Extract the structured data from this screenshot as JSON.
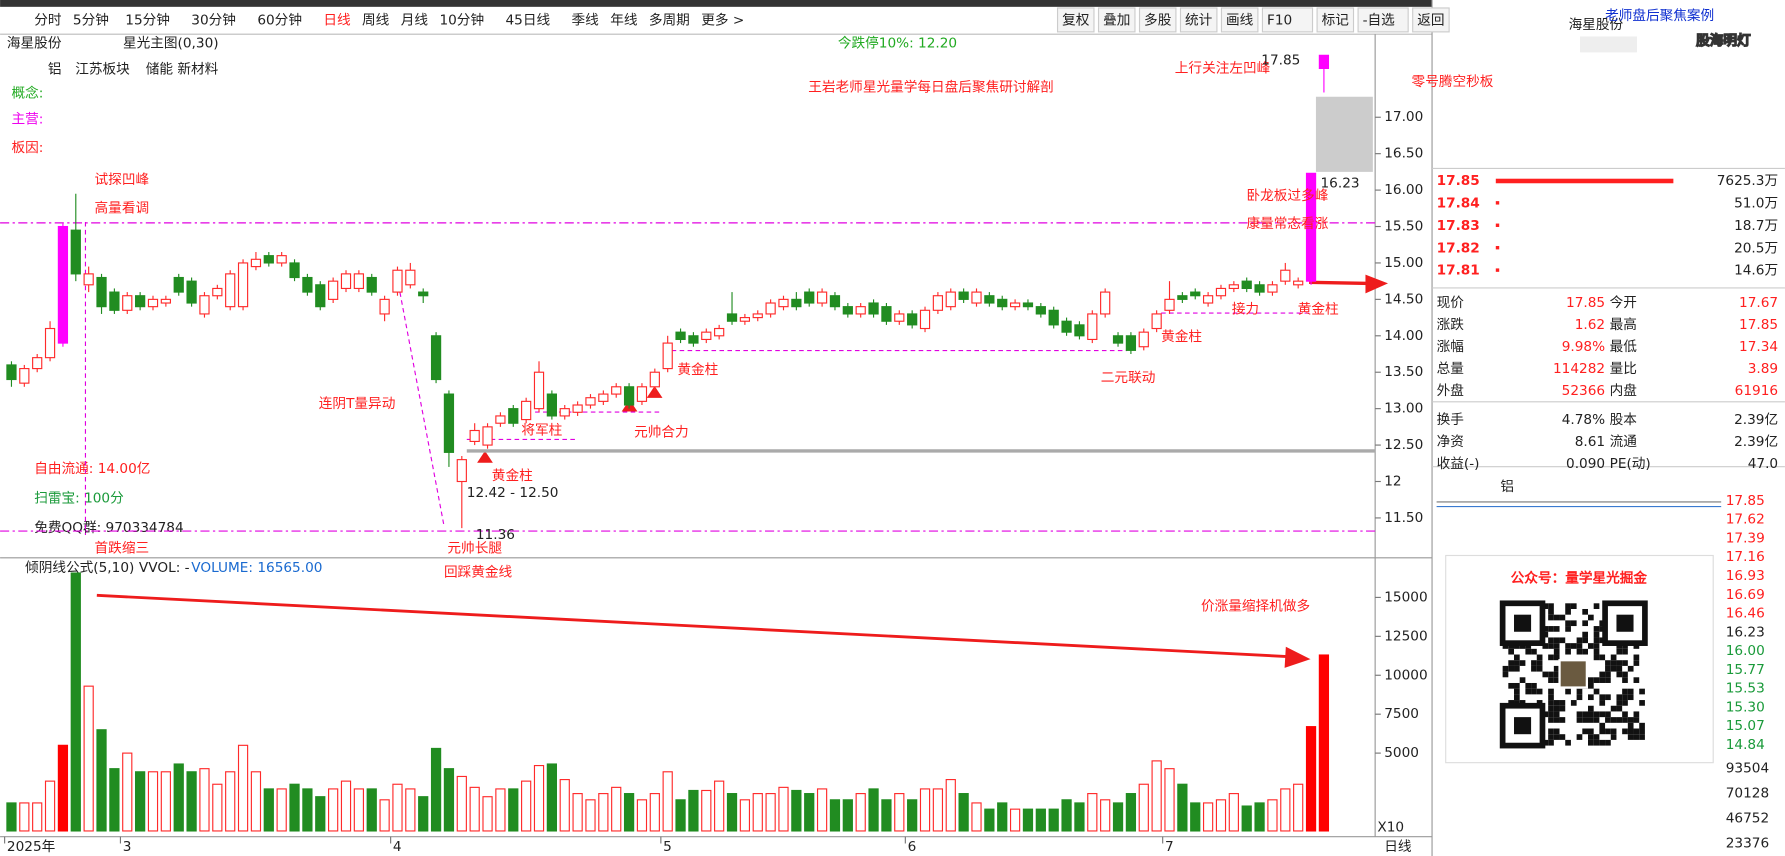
{
  "header": {
    "tabs": [
      "分时",
      "5分钟",
      "15分钟",
      "30分钟",
      "60分钟",
      "日线",
      "周线",
      "月线",
      "10分钟",
      "45日线",
      "季线",
      "年线",
      "多周期",
      "更多 >"
    ],
    "tools": [
      "复权",
      "叠加",
      "多股",
      "统计",
      "画线",
      "F10",
      "标记",
      "-自选",
      "返回"
    ]
  },
  "chart_data": {
    "type": "candlestick",
    "title": "海星股份",
    "indicator": "星光主图(0,30)",
    "limit_down": "今跌停10%: 12.20",
    "tags": [
      "铝",
      "江苏板块",
      "储能 新材料"
    ],
    "labels": [
      "概念:",
      "主营:",
      "板因:"
    ],
    "info": [
      "自由流通: 14.00亿",
      "扫雷宝: 100分",
      "免费QQ群: 970334784"
    ],
    "categories": [
      "2025年",
      null,
      null,
      null,
      null,
      null,
      null,
      null,
      null,
      "3",
      null,
      null,
      null,
      null,
      null,
      null,
      null,
      null,
      null,
      null,
      null,
      null,
      null,
      null,
      null,
      null,
      null,
      null,
      null,
      null,
      "4",
      null,
      null,
      null,
      null,
      null,
      null,
      null,
      null,
      null,
      null,
      null,
      null,
      null,
      null,
      null,
      null,
      null,
      null,
      null,
      null,
      "5",
      null,
      null,
      null,
      null,
      null,
      null,
      null,
      null,
      null,
      null,
      null,
      null,
      null,
      null,
      null,
      null,
      null,
      null,
      "6",
      null,
      null,
      null,
      null,
      null,
      null,
      null,
      null,
      null,
      null,
      null,
      null,
      null,
      null,
      null,
      null,
      null,
      null,
      null,
      "7",
      null,
      null,
      null,
      null,
      null,
      null,
      null,
      null,
      null,
      null,
      null,
      null
    ],
    "open": [
      13.6,
      13.35,
      13.55,
      13.7,
      13.9,
      15.45,
      14.7,
      14.8,
      14.6,
      14.35,
      14.55,
      14.4,
      14.45,
      14.8,
      14.75,
      14.3,
      14.55,
      14.4,
      14.4,
      14.95,
      15.1,
      15.0,
      15.0,
      14.8,
      14.7,
      14.5,
      14.65,
      14.65,
      14.8,
      14.3,
      14.6,
      14.7,
      14.6,
      14.0,
      13.2,
      12.0,
      12.55,
      12.5,
      12.8,
      13.0,
      12.85,
      13.0,
      13.2,
      12.9,
      12.95,
      13.05,
      13.1,
      13.2,
      13.3,
      13.1,
      13.3,
      13.55,
      14.05,
      14.0,
      13.95,
      14.0,
      14.3,
      14.2,
      14.25,
      14.3,
      14.4,
      14.5,
      14.6,
      14.45,
      14.55,
      14.4,
      14.3,
      14.45,
      14.4,
      14.2,
      14.3,
      14.1,
      14.35,
      14.4,
      14.6,
      14.45,
      14.55,
      14.5,
      14.4,
      14.45,
      14.4,
      14.35,
      14.2,
      14.15,
      13.95,
      14.3,
      14.0,
      14.0,
      13.85,
      14.1,
      14.35,
      14.55,
      14.6,
      14.45,
      14.55,
      14.65,
      14.75,
      14.7,
      14.6,
      14.75,
      14.7,
      14.75,
      17.67
    ],
    "close": [
      13.4,
      13.55,
      13.7,
      14.1,
      15.5,
      14.85,
      14.85,
      14.4,
      14.35,
      14.55,
      14.4,
      14.5,
      14.5,
      14.6,
      14.45,
      14.55,
      14.65,
      14.85,
      15.0,
      15.05,
      15.0,
      15.1,
      14.8,
      14.6,
      14.4,
      14.75,
      14.85,
      14.85,
      14.6,
      14.5,
      14.9,
      14.9,
      14.55,
      13.4,
      12.4,
      12.3,
      12.7,
      12.75,
      12.9,
      12.8,
      13.1,
      13.5,
      12.9,
      13.0,
      13.05,
      13.15,
      13.2,
      13.3,
      13.05,
      13.3,
      13.5,
      13.9,
      13.95,
      13.9,
      14.05,
      14.1,
      14.2,
      14.25,
      14.3,
      14.45,
      14.5,
      14.4,
      14.45,
      14.6,
      14.4,
      14.3,
      14.4,
      14.3,
      14.2,
      14.3,
      14.15,
      14.35,
      14.55,
      14.6,
      14.5,
      14.6,
      14.45,
      14.4,
      14.45,
      14.4,
      14.3,
      14.15,
      14.05,
      14.0,
      14.3,
      14.6,
      13.9,
      13.8,
      14.05,
      14.3,
      14.5,
      14.5,
      14.55,
      14.55,
      14.65,
      14.7,
      14.65,
      14.6,
      14.7,
      14.9,
      14.75,
      16.23,
      17.85
    ],
    "high": [
      13.65,
      13.6,
      13.75,
      14.2,
      15.55,
      15.95,
      14.95,
      14.85,
      14.65,
      14.6,
      14.6,
      14.55,
      14.55,
      14.85,
      14.8,
      14.6,
      14.7,
      14.9,
      15.05,
      15.15,
      15.15,
      15.15,
      15.05,
      14.85,
      14.75,
      14.8,
      14.9,
      14.9,
      14.85,
      14.55,
      14.95,
      15.0,
      14.65,
      14.05,
      13.25,
      12.35,
      12.8,
      12.8,
      12.95,
      13.05,
      13.15,
      13.65,
      13.25,
      13.05,
      13.1,
      13.2,
      13.25,
      13.35,
      13.35,
      13.35,
      13.55,
      14.0,
      14.1,
      14.05,
      14.1,
      14.15,
      14.6,
      14.3,
      14.35,
      14.5,
      14.55,
      14.6,
      14.65,
      14.65,
      14.6,
      14.45,
      14.45,
      14.5,
      14.45,
      14.35,
      14.35,
      14.4,
      14.6,
      14.65,
      14.65,
      14.65,
      14.6,
      14.55,
      14.5,
      14.5,
      14.45,
      14.4,
      14.25,
      14.2,
      14.35,
      14.65,
      14.05,
      14.05,
      14.1,
      14.35,
      14.75,
      14.6,
      14.65,
      14.6,
      14.7,
      14.75,
      14.8,
      14.75,
      14.75,
      15.0,
      14.8,
      16.23,
      17.85
    ],
    "low": [
      13.3,
      13.3,
      13.5,
      13.65,
      13.85,
      14.75,
      14.6,
      14.3,
      14.3,
      14.3,
      14.35,
      14.35,
      14.4,
      14.55,
      14.4,
      14.25,
      14.5,
      14.35,
      14.35,
      14.9,
      14.95,
      14.95,
      14.75,
      14.55,
      14.35,
      14.45,
      14.6,
      14.6,
      14.55,
      14.2,
      14.55,
      14.65,
      14.45,
      13.35,
      12.2,
      11.36,
      12.5,
      12.45,
      12.75,
      12.75,
      12.8,
      12.95,
      12.85,
      12.85,
      12.9,
      13.0,
      13.05,
      13.15,
      13.0,
      13.05,
      13.25,
      13.5,
      13.9,
      13.85,
      13.9,
      13.95,
      14.15,
      14.15,
      14.2,
      14.25,
      14.35,
      14.35,
      14.4,
      14.4,
      14.35,
      14.25,
      14.25,
      14.25,
      14.15,
      14.15,
      14.1,
      14.05,
      14.3,
      14.35,
      14.45,
      14.4,
      14.4,
      14.35,
      14.35,
      14.35,
      14.25,
      14.1,
      14.0,
      13.95,
      13.9,
      14.25,
      13.85,
      13.75,
      13.8,
      14.05,
      14.3,
      14.45,
      14.5,
      14.4,
      14.5,
      14.6,
      14.6,
      14.55,
      14.55,
      14.7,
      14.65,
      14.7,
      17.34
    ],
    "up_color": "#ff2a2a",
    "down_color": "#218c21",
    "limit_color": "#ff00ff",
    "ylim": [
      11.0,
      18.1
    ],
    "yticks": [
      {
        "value": 11.5,
        "label": "11.50"
      },
      12,
      {
        "value": 12.5,
        "label": "12.50"
      },
      {
        "value": 13,
        "label": "13.00"
      },
      {
        "value": 13.5,
        "label": "13.50"
      },
      {
        "value": 14,
        "label": "14.00"
      },
      {
        "value": 14.5,
        "label": "14.50"
      },
      {
        "value": 15,
        "label": "15.00"
      },
      {
        "value": 15.5,
        "label": "15.50"
      },
      {
        "value": 16,
        "label": "16.00"
      },
      {
        "value": 16.5,
        "label": "16.50"
      },
      {
        "value": 17,
        "label": "17.00"
      }
    ],
    "reference_lines": [
      15.55,
      11.32,
      12.42
    ],
    "annotations": [
      "王岩老师星光量学每日盘后聚焦研讨解剖",
      "上行关注左凹峰",
      "零号腾空秒板",
      "试探凹峰",
      "高量看调",
      "卧龙板过多峰",
      "康量常态看涨",
      "连阴T量异动",
      "将军柱",
      "元帅合力",
      "黄金柱",
      "黄金柱",
      "二元联动",
      "黄金柱",
      "接力",
      "黄金柱",
      "首跌缩三",
      "元帅长腿",
      "回踩黄金线",
      "价涨量缩择机做多",
      "12.42 - 12.50",
      "11.36",
      "17.85",
      "16.23"
    ],
    "volume": {
      "title": "倾阴线公式(5,10)",
      "legend": "VVOL: -",
      "volume_label": "VOLUME: 16565.00",
      "multiplier": "X10",
      "values": [
        1800,
        1800,
        1800,
        3200,
        5500,
        16565,
        9300,
        6500,
        4000,
        5000,
        3800,
        3800,
        3800,
        4300,
        3800,
        4000,
        3000,
        3800,
        5500,
        3800,
        2700,
        2700,
        3000,
        2700,
        2200,
        2700,
        3200,
        2700,
        2700,
        2000,
        3000,
        2700,
        2200,
        5300,
        4000,
        3500,
        2800,
        2200,
        2700,
        2700,
        3200,
        4200,
        4300,
        3300,
        2400,
        2000,
        2400,
        2800,
        2400,
        2000,
        2400,
        3800,
        2000,
        2600,
        2600,
        3200,
        2400,
        2000,
        2400,
        2400,
        2800,
        2600,
        2400,
        2700,
        2000,
        2000,
        2400,
        2700,
        2000,
        2400,
        2000,
        2700,
        2700,
        3300,
        2400,
        1800,
        1400,
        1800,
        1400,
        1400,
        1400,
        1400,
        2000,
        1800,
        2400,
        2000,
        1800,
        2400,
        3000,
        4500,
        4000,
        3000,
        1800,
        1800,
        2000,
        2400,
        1600,
        1800,
        2000,
        2700,
        3000,
        6700,
        11300
      ],
      "ylim": [
        0,
        17400
      ],
      "yticks": [
        5000,
        7500,
        10000,
        12500,
        15000
      ]
    }
  },
  "side": {
    "name": "海星股份",
    "ad": "老师盘后聚焦案例",
    "watermark": "股海明灯",
    "orders": [
      [
        "17.85",
        "7625.3万"
      ],
      [
        "17.84",
        "51.0万"
      ],
      [
        "17.83",
        "18.7万"
      ],
      [
        "17.82",
        "20.5万"
      ],
      [
        "17.81",
        "14.6万"
      ]
    ],
    "stats": [
      [
        "现价",
        "17.85",
        "今开",
        "17.67"
      ],
      [
        "涨跌",
        "1.62",
        "最高",
        "17.85"
      ],
      [
        "涨幅",
        "9.98%",
        "最低",
        "17.34"
      ],
      [
        "总量",
        "114282",
        "量比",
        "3.89"
      ],
      [
        "外盘",
        "52366",
        "内盘",
        "61916"
      ],
      [
        "换手",
        "4.78%",
        "股本",
        "2.39亿"
      ],
      [
        "净资",
        "8.61",
        "流通",
        "2.39亿"
      ],
      [
        "收益(-)",
        "0.090",
        "PE(动)",
        "47.0"
      ]
    ],
    "sector": "铝",
    "wechat": "公众号：量学星光掘金",
    "intraday_axis": [
      "17.85",
      "17.62",
      "17.39",
      "17.16",
      "16.93",
      "16.69",
      "16.46",
      "16.23",
      "16.00",
      "15.77",
      "15.53",
      "15.30",
      "15.07",
      "14.84"
    ],
    "intraday_volume_axis": [
      "93504",
      "70128",
      "46752",
      "23376"
    ],
    "period": "日线"
  }
}
